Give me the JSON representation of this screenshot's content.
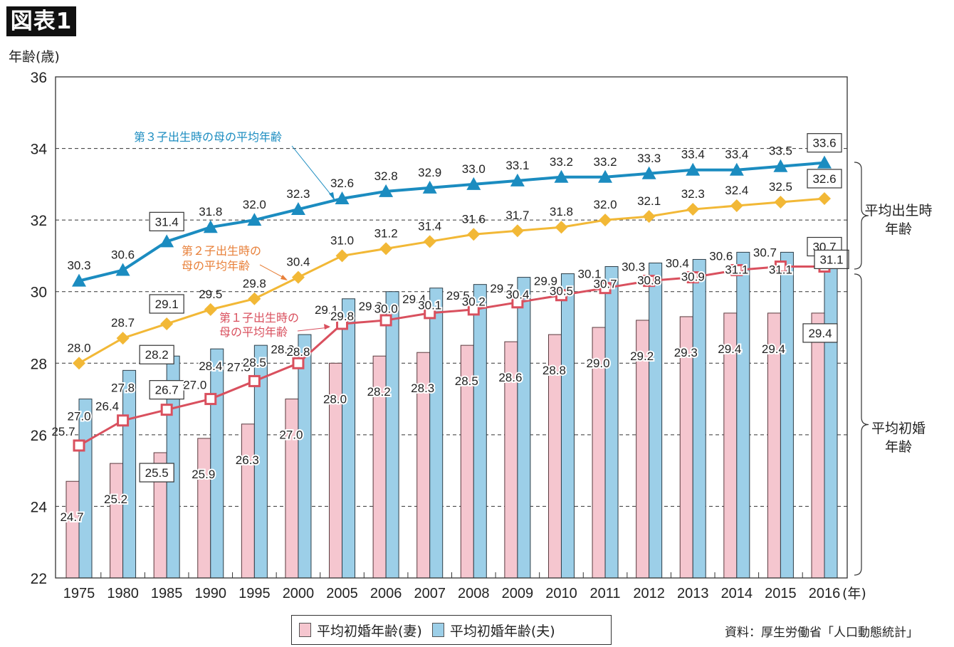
{
  "figure_label": "図表1",
  "legend": {
    "wife_label": "平均初婚年齢(妻)",
    "husband_label": "平均初婚年齢(夫)"
  },
  "source": "資料：厚生労働省「人口動態統計」",
  "colors": {
    "wife_bar": "#f5c6cf",
    "husband_bar": "#9ccfe8",
    "first_child": "#d9505e",
    "second_child": "#f2b836",
    "third_child": "#1b8cc0",
    "first_child_label": "#d9505e",
    "second_child_label": "#e8803a",
    "third_child_label": "#1b8cc0"
  },
  "chart_data": {
    "type": "bar",
    "title": "",
    "ylabel": "年齢(歳)",
    "xlabel_suffix": "(年)",
    "ylim": [
      22,
      36
    ],
    "yticks": [
      22,
      24,
      26,
      28,
      30,
      32,
      34,
      36
    ],
    "grid": true,
    "categories": [
      "1975",
      "1980",
      "1985",
      "1990",
      "1995",
      "2000",
      "2005",
      "2006",
      "2007",
      "2008",
      "2009",
      "2010",
      "2011",
      "2012",
      "2013",
      "2014",
      "2015",
      "2016"
    ],
    "series": [
      {
        "name": "平均初婚年齢(妻)",
        "kind": "bar",
        "values": [
          24.7,
          25.2,
          25.5,
          25.9,
          26.3,
          27.0,
          28.0,
          28.2,
          28.3,
          28.5,
          28.6,
          28.8,
          29.0,
          29.2,
          29.3,
          29.4,
          29.4,
          29.4
        ],
        "boxed": [
          2,
          17
        ]
      },
      {
        "name": "平均初婚年齢(夫)",
        "kind": "bar",
        "values": [
          27.0,
          27.8,
          28.2,
          28.4,
          28.5,
          28.8,
          29.8,
          30.0,
          30.1,
          30.2,
          30.4,
          30.5,
          30.7,
          30.8,
          30.9,
          31.1,
          31.1,
          31.1
        ],
        "boxed": [
          2,
          17
        ]
      },
      {
        "name": "第1子出生時の母の平均年齢",
        "kind": "line",
        "marker": "square",
        "values": [
          25.7,
          26.4,
          26.7,
          27.0,
          27.5,
          28.0,
          29.1,
          29.2,
          29.4,
          29.5,
          29.7,
          29.9,
          30.1,
          30.3,
          30.4,
          30.6,
          30.7,
          30.7
        ],
        "boxed": [
          2,
          17
        ]
      },
      {
        "name": "第2子出生時の母の平均年齢",
        "kind": "line",
        "marker": "diamond",
        "values": [
          28.0,
          28.7,
          29.1,
          29.5,
          29.8,
          30.4,
          31.0,
          31.2,
          31.4,
          31.6,
          31.7,
          31.8,
          32.0,
          32.1,
          32.3,
          32.4,
          32.5,
          32.6
        ],
        "boxed": [
          2,
          17
        ]
      },
      {
        "name": "第3子出生時の母の平均年齢",
        "kind": "line",
        "marker": "triangle",
        "values": [
          30.3,
          30.6,
          31.4,
          31.8,
          32.0,
          32.3,
          32.6,
          32.8,
          32.9,
          33.0,
          33.1,
          33.2,
          33.2,
          33.3,
          33.4,
          33.4,
          33.5,
          33.6
        ],
        "boxed": [
          2,
          17
        ]
      }
    ],
    "annotations": {
      "first_child": [
        "第１子出生時の",
        "母の平均年齢"
      ],
      "second_child": [
        "第２子出生時の",
        "母の平均年齢"
      ],
      "third_child": "第３子出生時の母の平均年齢",
      "bracket_birth": [
        "平均出生時",
        "年齢"
      ],
      "bracket_marriage": [
        "平均初婚",
        "年齢"
      ]
    },
    "legend_position": "bottom-center"
  }
}
